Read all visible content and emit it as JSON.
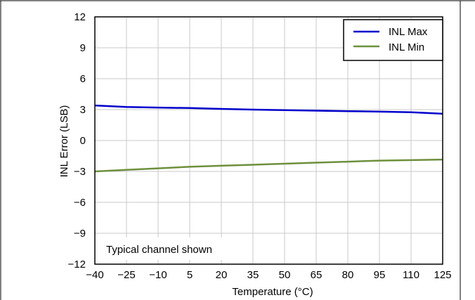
{
  "chart_data": {
    "type": "line",
    "title": "",
    "xlabel": "Temperature (°C)",
    "ylabel": "INL Error (LSB)",
    "xlim": [
      -40,
      125
    ],
    "ylim": [
      -12,
      12
    ],
    "xticks": [
      -40,
      -25,
      -10,
      5,
      20,
      35,
      50,
      65,
      80,
      95,
      110,
      125
    ],
    "xtick_labels": [
      "−40",
      "−25",
      "−10",
      "5",
      "20",
      "35",
      "50",
      "65",
      "80",
      "95",
      "110",
      "125"
    ],
    "yticks": [
      -12,
      -9,
      -6,
      -3,
      0,
      3,
      6,
      9,
      12
    ],
    "ytick_labels": [
      "−12",
      "−9",
      "−6",
      "−3",
      "0",
      "3",
      "6",
      "9",
      "12"
    ],
    "grid": true,
    "legend_position": "top-right",
    "annotation": "Typical channel shown",
    "series": [
      {
        "name": "INL Max",
        "color": "#0000cc",
        "x": [
          -40,
          -25,
          -10,
          5,
          20,
          35,
          50,
          65,
          80,
          95,
          110,
          125
        ],
        "y": [
          3.4,
          3.25,
          3.2,
          3.15,
          3.07,
          3.0,
          2.95,
          2.9,
          2.85,
          2.8,
          2.75,
          2.6
        ]
      },
      {
        "name": "INL Min",
        "color": "#6e8f3c",
        "x": [
          -40,
          -25,
          -10,
          5,
          20,
          35,
          50,
          65,
          80,
          95,
          110,
          125
        ],
        "y": [
          -3.0,
          -2.85,
          -2.7,
          -2.55,
          -2.45,
          -2.35,
          -2.25,
          -2.15,
          -2.05,
          -1.95,
          -1.9,
          -1.85
        ]
      }
    ]
  }
}
